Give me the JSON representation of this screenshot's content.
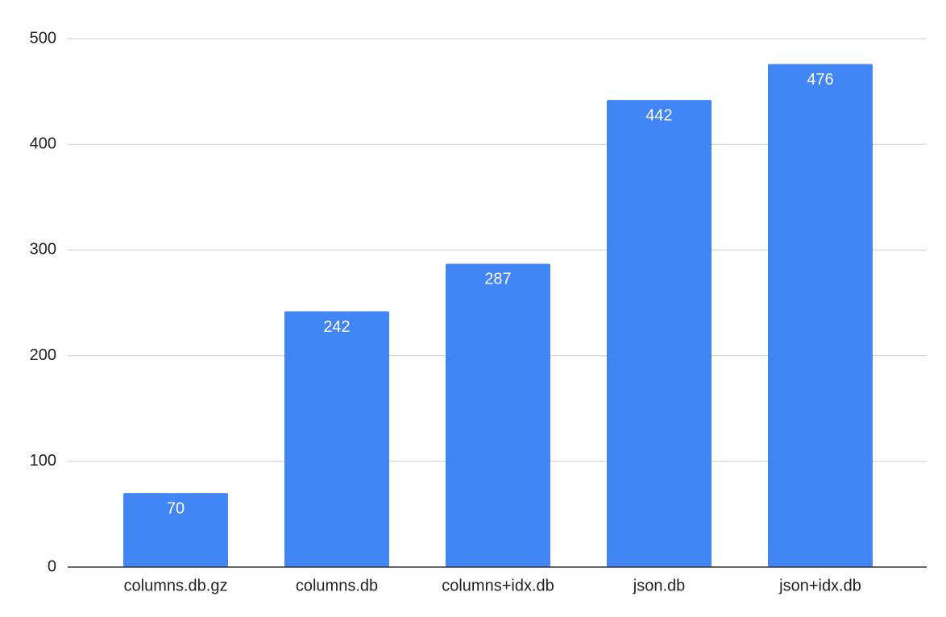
{
  "chart_data": {
    "type": "bar",
    "categories": [
      "columns.db.gz",
      "columns.db",
      "columns+idx.db",
      "json.db",
      "json+idx.db"
    ],
    "values": [
      70,
      242,
      287,
      442,
      476
    ],
    "color": "#4285f4",
    "ylim": [
      0,
      500
    ],
    "yticks": [
      0,
      100,
      200,
      300,
      400,
      500
    ],
    "grid": true
  }
}
